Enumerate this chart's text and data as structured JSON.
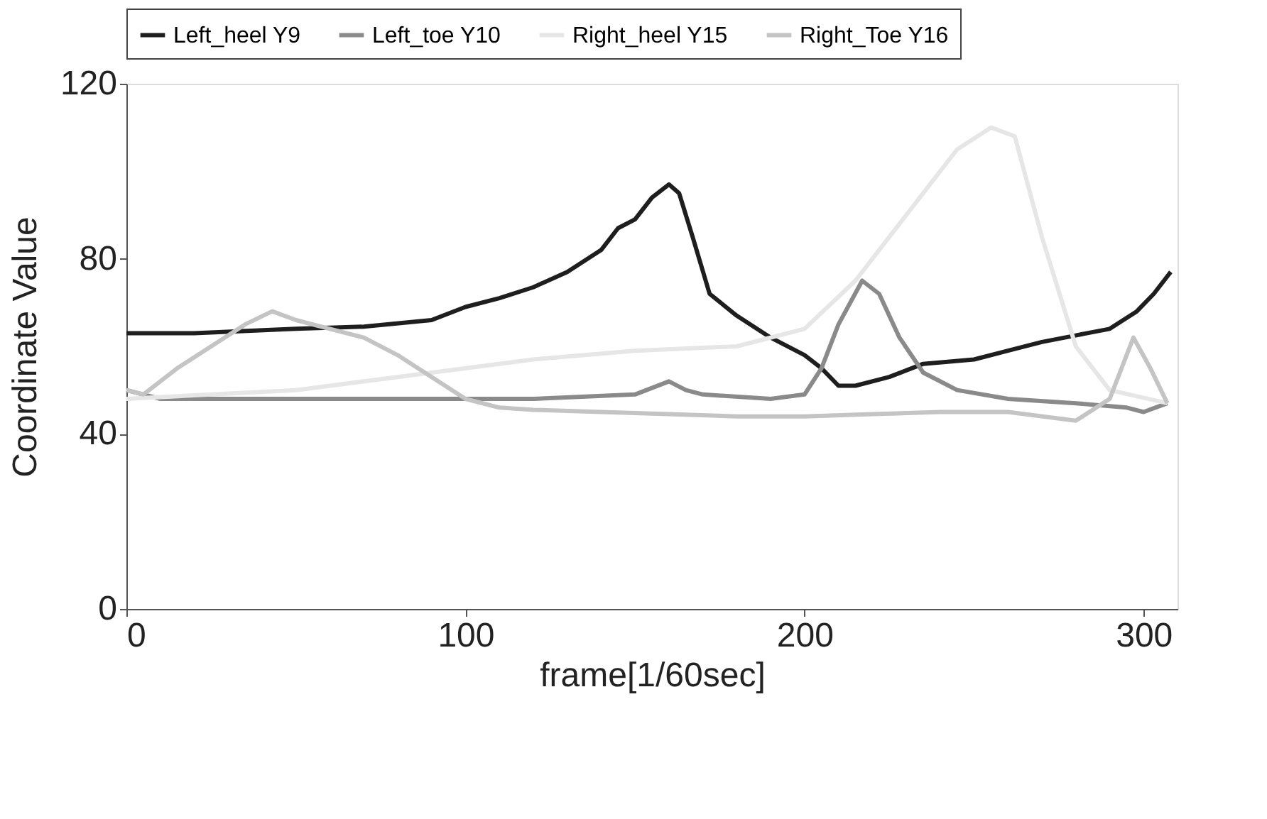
{
  "chart_data": {
    "type": "line",
    "xlabel": "frame[1/60sec]",
    "ylabel": "Coordinate Value",
    "xlim": [
      0,
      310
    ],
    "ylim": [
      0,
      120
    ],
    "xticks": [
      0,
      100,
      200,
      300
    ],
    "yticks": [
      0,
      40,
      80,
      120
    ],
    "grid": false,
    "legend": "top",
    "marker": "none",
    "line_style": "solid",
    "series": [
      {
        "name": "Left_heel Y9",
        "color": "#1e1e1e",
        "x": [
          0,
          20,
          50,
          70,
          90,
          100,
          110,
          120,
          130,
          140,
          145,
          150,
          155,
          160,
          163,
          167,
          172,
          180,
          190,
          200,
          205,
          210,
          215,
          225,
          235,
          250,
          260,
          270,
          280,
          290,
          298,
          303,
          308
        ],
        "values": [
          63,
          63,
          64,
          64.5,
          66,
          69,
          71,
          73.5,
          77,
          82,
          87,
          89,
          94,
          97,
          95,
          85,
          72,
          67,
          62,
          58,
          55,
          51,
          51,
          53,
          56,
          57,
          59,
          61,
          62.5,
          64,
          68,
          72,
          77
        ]
      },
      {
        "name": "Left_toe Y10",
        "color": "#8a8a8a",
        "x": [
          0,
          5,
          10,
          30,
          60,
          90,
          120,
          150,
          160,
          165,
          170,
          190,
          200,
          205,
          210,
          217,
          222,
          228,
          235,
          245,
          260,
          280,
          295,
          300,
          307
        ],
        "values": [
          50,
          49,
          48,
          48,
          48,
          48,
          48,
          49,
          52,
          50,
          49,
          48,
          49,
          55,
          65,
          75,
          72,
          62,
          54,
          50,
          48,
          47,
          46,
          45,
          47
        ]
      },
      {
        "name": "Right_heel Y15",
        "color": "#e6e6e6",
        "x": [
          0,
          50,
          80,
          120,
          150,
          180,
          200,
          215,
          230,
          245,
          255,
          262,
          270,
          280,
          290,
          307
        ],
        "values": [
          48,
          50,
          53,
          57,
          59,
          60,
          64,
          75,
          90,
          105,
          110,
          108,
          85,
          60,
          50,
          47
        ]
      },
      {
        "name": "Right_Toe Y16",
        "color": "#c4c4c4",
        "x": [
          0,
          5,
          15,
          25,
          35,
          43,
          50,
          60,
          70,
          80,
          90,
          100,
          110,
          120,
          140,
          160,
          180,
          200,
          220,
          240,
          260,
          280,
          290,
          297,
          302,
          307
        ],
        "values": [
          50,
          49,
          55,
          60,
          65,
          68,
          66,
          64,
          62,
          58,
          53,
          48,
          46,
          45.5,
          45,
          44.5,
          44,
          44,
          44.5,
          45,
          45,
          43,
          48,
          62,
          55,
          47
        ]
      }
    ]
  }
}
